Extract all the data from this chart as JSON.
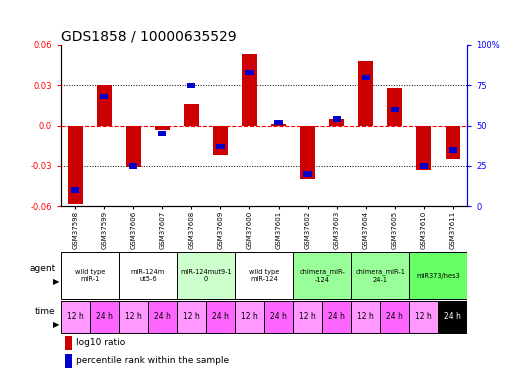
{
  "title": "GDS1858 / 10000635529",
  "samples": [
    "GSM37598",
    "GSM37599",
    "GSM37606",
    "GSM37607",
    "GSM37608",
    "GSM37609",
    "GSM37600",
    "GSM37601",
    "GSM37602",
    "GSM37603",
    "GSM37604",
    "GSM37605",
    "GSM37610",
    "GSM37611"
  ],
  "log10_ratio": [
    -0.058,
    0.03,
    -0.031,
    -0.003,
    0.016,
    -0.022,
    0.053,
    0.001,
    -0.04,
    0.005,
    0.048,
    0.028,
    -0.033,
    -0.025
  ],
  "percentile": [
    10,
    68,
    25,
    45,
    75,
    37,
    83,
    52,
    20,
    54,
    80,
    60,
    25,
    35
  ],
  "ylim": [
    -0.06,
    0.06
  ],
  "yticks_left": [
    -0.06,
    -0.03,
    0.0,
    0.03,
    0.06
  ],
  "yticks_right": [
    0,
    25,
    50,
    75,
    100
  ],
  "bar_color_red": "#cc0000",
  "bar_color_blue": "#0000cc",
  "agent_groups": [
    {
      "label": "wild type\nmiR-1",
      "cols": [
        0,
        1
      ],
      "color": "#ffffff"
    },
    {
      "label": "miR-124m\nut5-6",
      "cols": [
        2,
        3
      ],
      "color": "#ffffff"
    },
    {
      "label": "miR-124mut9-1\n0",
      "cols": [
        4,
        5
      ],
      "color": "#ccffcc"
    },
    {
      "label": "wild type\nmiR-124",
      "cols": [
        6,
        7
      ],
      "color": "#ffffff"
    },
    {
      "label": "chimera_miR-\n-124",
      "cols": [
        8,
        9
      ],
      "color": "#99ff99"
    },
    {
      "label": "chimera_miR-1\n24-1",
      "cols": [
        10,
        11
      ],
      "color": "#99ff99"
    },
    {
      "label": "miR373/hes3",
      "cols": [
        12,
        13
      ],
      "color": "#66ff66"
    }
  ],
  "time_labels": [
    "12 h",
    "24 h",
    "12 h",
    "24 h",
    "12 h",
    "24 h",
    "12 h",
    "24 h",
    "12 h",
    "24 h",
    "12 h",
    "24 h",
    "12 h",
    "24 h"
  ],
  "bg_color": "#ffffff",
  "title_fontsize": 10,
  "tick_fontsize": 6
}
